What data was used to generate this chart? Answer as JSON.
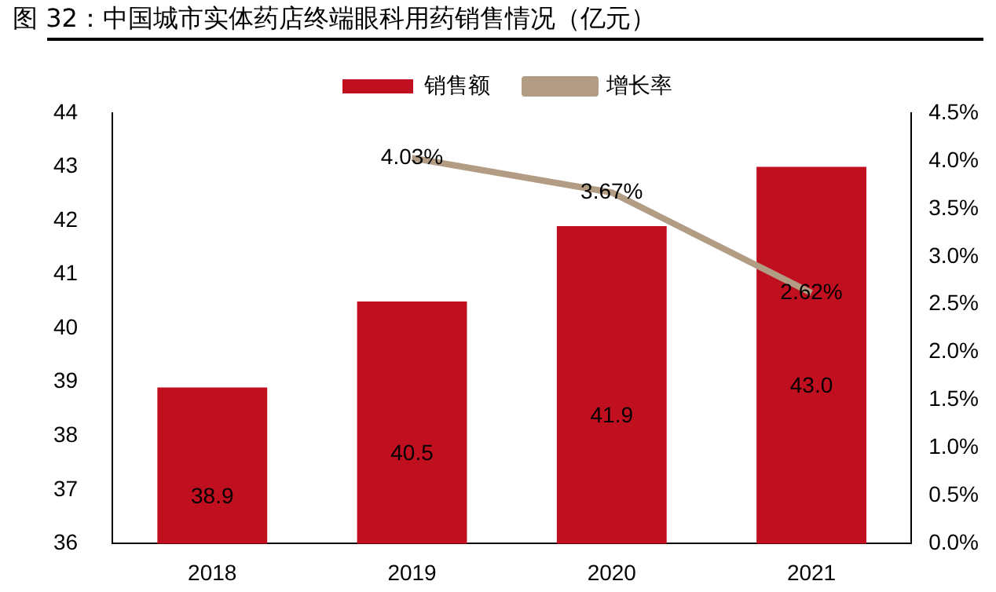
{
  "chart_data": {
    "type": "bar",
    "title": "图 32：中国城市实体药店终端眼科用药销售情况（亿元）",
    "categories": [
      "2018",
      "2019",
      "2020",
      "2021"
    ],
    "series": [
      {
        "name": "销售额",
        "color": "#c00f1e",
        "values": [
          38.9,
          40.5,
          41.9,
          43.0
        ],
        "value_labels": [
          "38.9",
          "40.5",
          "41.9",
          "43.0"
        ]
      },
      {
        "name": "增长率",
        "type": "line",
        "axis": "y2",
        "color": "#b39c84",
        "values": [
          null,
          4.03,
          3.67,
          2.62
        ],
        "value_labels": [
          null,
          "4.03%",
          "3.67%",
          "2.62%"
        ]
      }
    ],
    "ylim": [
      36,
      44
    ],
    "yticks": [
      36,
      37,
      38,
      39,
      40,
      41,
      42,
      43,
      44
    ],
    "y2lim": [
      0,
      4.5
    ],
    "y2ticks": [
      {
        "value": 0,
        "label": "0.0%"
      },
      {
        "value": 0.5,
        "label": "0.5%"
      },
      {
        "value": 1,
        "label": "1.0%"
      },
      {
        "value": 1.5,
        "label": "1.5%"
      },
      {
        "value": 2,
        "label": "2.0%"
      },
      {
        "value": 2.5,
        "label": "2.5%"
      },
      {
        "value": 3,
        "label": "3.0%"
      },
      {
        "value": 3.5,
        "label": "3.5%"
      },
      {
        "value": 4,
        "label": "4.0%"
      },
      {
        "value": 4.5,
        "label": "4.5%"
      }
    ],
    "grid": false,
    "legend": "top",
    "marker": "none",
    "line_style": "solid"
  }
}
